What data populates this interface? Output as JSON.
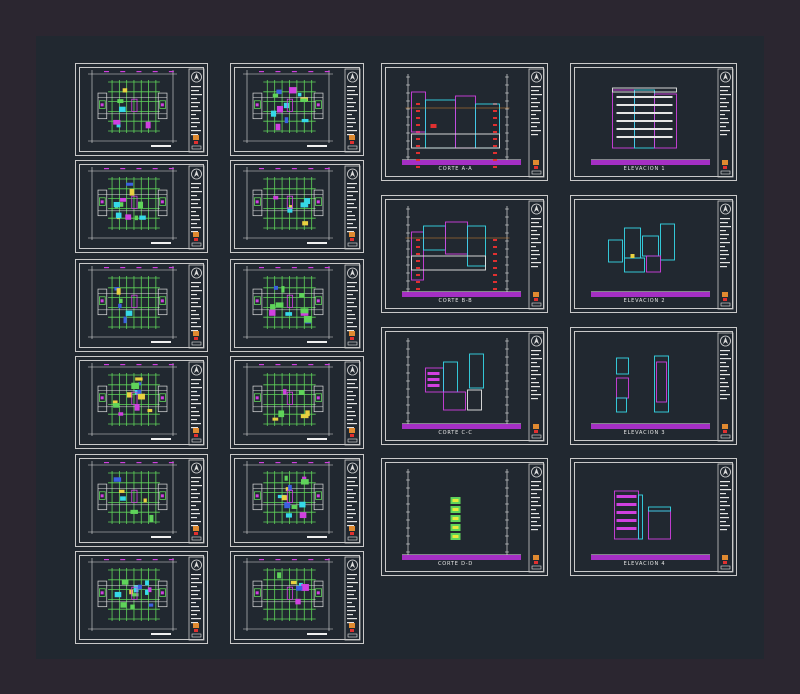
{
  "drawing": {
    "plan_column_1_count": 6,
    "plan_column_2_count": 6,
    "section_labels": [
      "CORTE A-A",
      "CORTE B-B",
      "CORTE C-C",
      "CORTE D-D"
    ],
    "elevation_labels": [
      "ELEVACION 1",
      "ELEVACION 2",
      "ELEVACION 3",
      "ELEVACION 4"
    ]
  },
  "colors": {
    "background": "#2b2630",
    "model_space": "#212830",
    "sheet_border": "#c9c9c9",
    "grid_green": "#5fd35a",
    "magenta": "#d040e0",
    "cyan": "#36d8e8",
    "red": "#e03030",
    "yellow": "#e8d040",
    "ground_fill": "#a52fc4"
  }
}
